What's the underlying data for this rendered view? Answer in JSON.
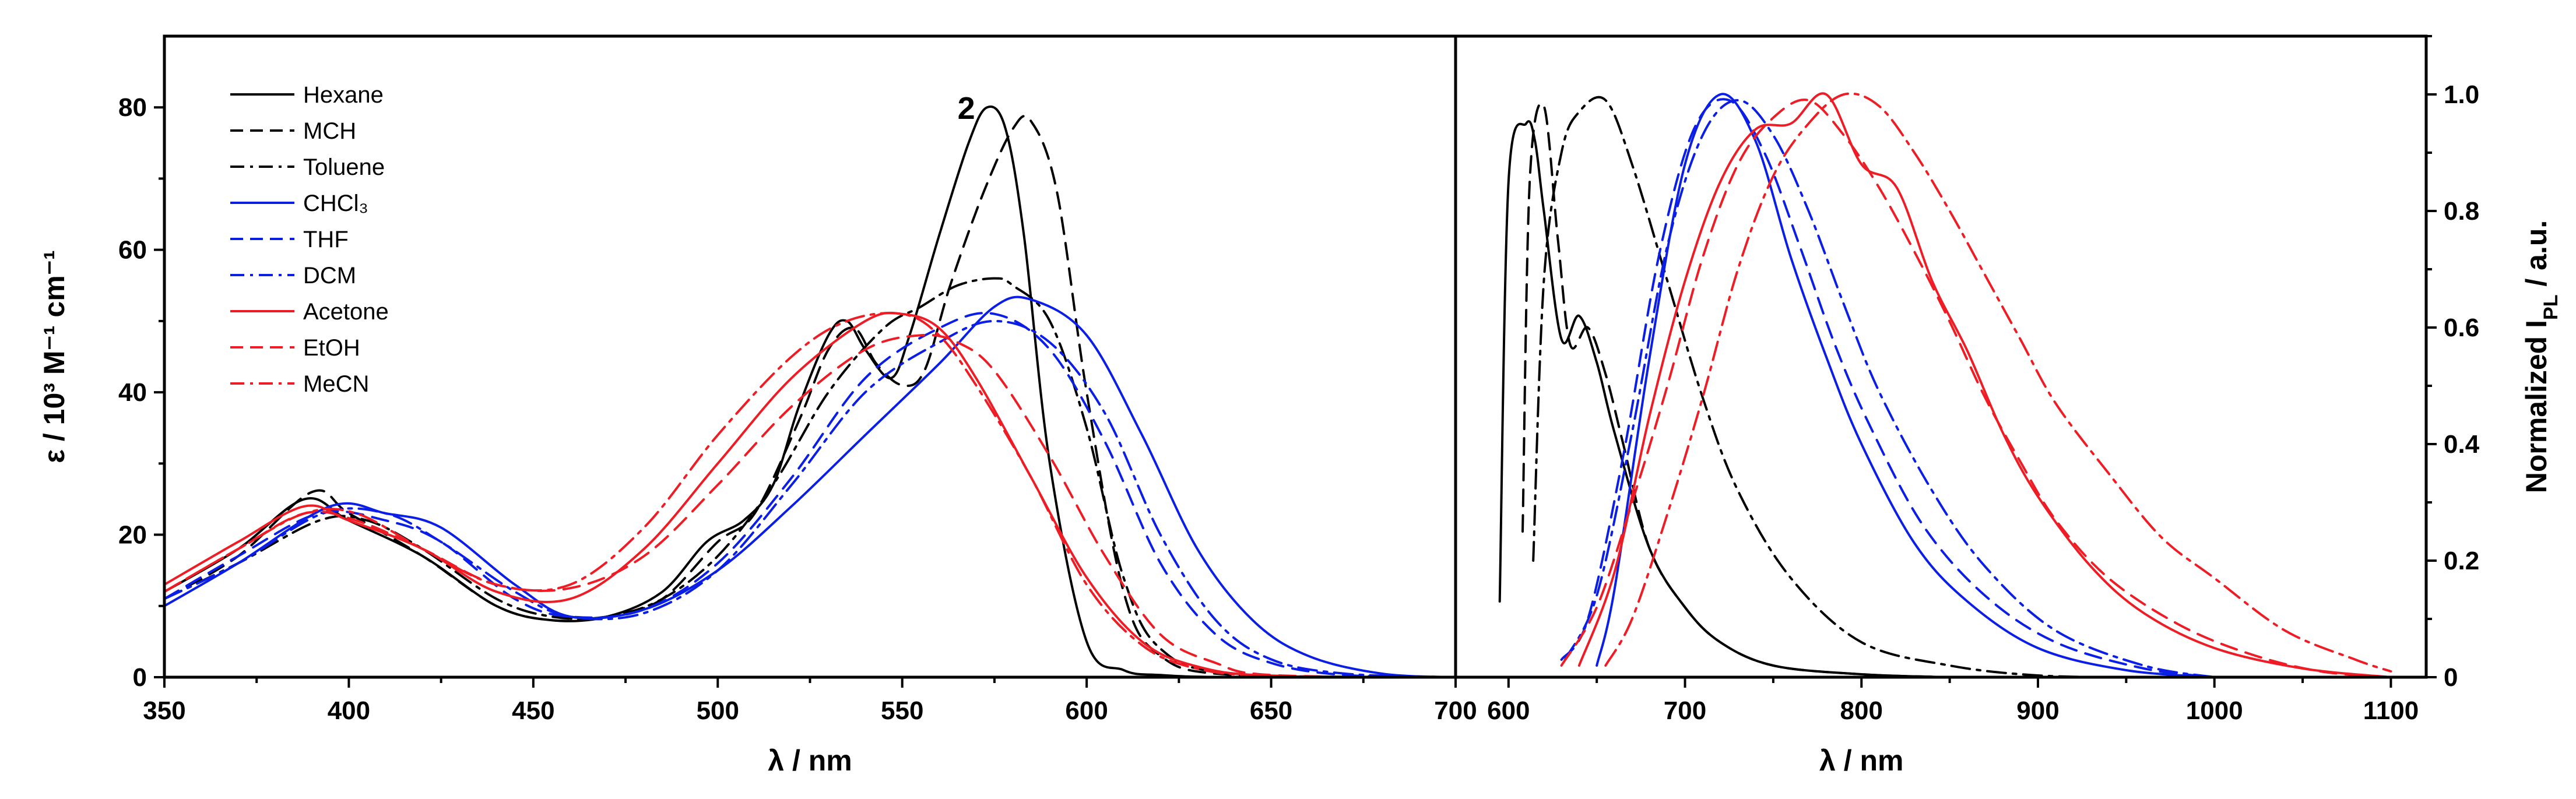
{
  "chart_data": [
    {
      "type": "line",
      "title": "",
      "panel_label": "2",
      "xlabel": "λ / nm",
      "ylabel": "ε / 10³ M⁻¹ cm⁻¹",
      "xlim": [
        350,
        700
      ],
      "ylim": [
        0,
        90
      ],
      "xticks": [
        "350",
        "400",
        "450",
        "500",
        "550",
        "600",
        "650",
        "700"
      ],
      "yticks": [
        "0",
        "20",
        "40",
        "60",
        "80"
      ],
      "legend": [
        {
          "name": "Hexane",
          "color": "#000000",
          "style": "solid"
        },
        {
          "name": "MCH",
          "color": "#000000",
          "style": "dash"
        },
        {
          "name": "Toluene",
          "color": "#000000",
          "style": "dashdot"
        },
        {
          "name": "CHCl₃",
          "color": "#0a1ee6",
          "style": "solid"
        },
        {
          "name": "THF",
          "color": "#0a1ee6",
          "style": "dash"
        },
        {
          "name": "DCM",
          "color": "#0a1ee6",
          "style": "dashdot"
        },
        {
          "name": "Acetone",
          "color": "#ee1c24",
          "style": "solid"
        },
        {
          "name": "EtOH",
          "color": "#ee1c24",
          "style": "dash"
        },
        {
          "name": "MeCN",
          "color": "#ee1c24",
          "style": "dashdot"
        }
      ],
      "series": [
        {
          "name": "Hexane",
          "color": "#000000",
          "style": "solid",
          "x": [
            350,
            370,
            388,
            400,
            420,
            440,
            455,
            470,
            485,
            497,
            507,
            515,
            522,
            530,
            535,
            540,
            547,
            552,
            560,
            568,
            573,
            578,
            583,
            590,
            600,
            610,
            620,
            640,
            700
          ],
          "y": [
            12,
            18,
            25,
            22,
            17,
            10,
            8,
            8.5,
            12,
            19,
            22,
            27,
            38,
            48,
            50,
            46,
            42,
            48,
            62,
            75,
            80,
            77,
            62,
            30,
            5,
            1,
            0.3,
            0,
            0
          ]
        },
        {
          "name": "MCH",
          "color": "#000000",
          "style": "dash",
          "x": [
            350,
            370,
            390,
            400,
            420,
            440,
            455,
            470,
            485,
            500,
            510,
            522,
            530,
            537,
            543,
            550,
            556,
            563,
            572,
            580,
            585,
            592,
            600,
            610,
            620,
            640,
            700
          ],
          "y": [
            11,
            17,
            26,
            23,
            17,
            10,
            8,
            8.5,
            11,
            19,
            23,
            36,
            46,
            49,
            44,
            41,
            43,
            55,
            68,
            77,
            78,
            68,
            40,
            12,
            3,
            0.3,
            0
          ]
        },
        {
          "name": "Toluene",
          "color": "#000000",
          "style": "dashdot",
          "x": [
            350,
            370,
            392,
            405,
            420,
            440,
            455,
            470,
            485,
            500,
            515,
            530,
            545,
            555,
            565,
            575,
            580,
            590,
            600,
            610,
            620,
            640,
            700
          ],
          "y": [
            11,
            16,
            22,
            22,
            18,
            11,
            8.5,
            8.5,
            11,
            17,
            27,
            40,
            49,
            52,
            55,
            56,
            55,
            50,
            35,
            14,
            4,
            0.5,
            0
          ]
        },
        {
          "name": "CHCl₃",
          "color": "#0a1ee6",
          "style": "solid",
          "x": [
            350,
            370,
            395,
            410,
            425,
            445,
            460,
            480,
            500,
            520,
            540,
            560,
            575,
            585,
            600,
            615,
            630,
            645,
            660,
            680,
            700
          ],
          "y": [
            10,
            16,
            24,
            23,
            21,
            13,
            8.5,
            9.5,
            15,
            24,
            34,
            44,
            52,
            53,
            48,
            34,
            18,
            8,
            3,
            0.5,
            0
          ]
        },
        {
          "name": "THF",
          "color": "#0a1ee6",
          "style": "dash",
          "x": [
            350,
            370,
            392,
            410,
            425,
            445,
            460,
            480,
            500,
            520,
            540,
            560,
            575,
            590,
            605,
            620,
            635,
            650,
            670,
            700
          ],
          "y": [
            11,
            17,
            23,
            22,
            19,
            11,
            8.5,
            9.5,
            16,
            28,
            42,
            49,
            51,
            46,
            33,
            16,
            6,
            2,
            0.3,
            0
          ]
        },
        {
          "name": "DCM",
          "color": "#0a1ee6",
          "style": "dashdot",
          "x": [
            350,
            370,
            393,
            410,
            425,
            445,
            460,
            480,
            500,
            520,
            540,
            560,
            575,
            590,
            605,
            620,
            635,
            650,
            670,
            700
          ],
          "y": [
            11,
            16,
            23,
            23,
            19,
            12,
            8.5,
            9,
            15,
            27,
            40,
            47,
            50,
            47,
            37,
            20,
            8,
            2.5,
            0.5,
            0
          ]
        },
        {
          "name": "Acetone",
          "color": "#ee1c24",
          "style": "solid",
          "x": [
            350,
            370,
            388,
            400,
            420,
            440,
            460,
            480,
            500,
            520,
            540,
            550,
            560,
            570,
            585,
            600,
            615,
            630,
            650,
            700
          ],
          "y": [
            13,
            19,
            24,
            22,
            18,
            12,
            11,
            18,
            30,
            42,
            50,
            51,
            49,
            42,
            28,
            14,
            5,
            1.5,
            0.2,
            0
          ]
        },
        {
          "name": "EtOH",
          "color": "#ee1c24",
          "style": "dash",
          "x": [
            350,
            370,
            388,
            402,
            420,
            440,
            460,
            480,
            500,
            520,
            540,
            555,
            565,
            575,
            590,
            605,
            620,
            635,
            650,
            700
          ],
          "y": [
            12,
            18,
            23,
            22,
            18,
            13,
            12.5,
            17,
            27,
            38,
            46,
            48,
            47,
            43,
            31,
            17,
            6,
            2,
            0.3,
            0
          ]
        },
        {
          "name": "MeCN",
          "color": "#ee1c24",
          "style": "dashdot",
          "x": [
            350,
            370,
            388,
            402,
            420,
            440,
            460,
            480,
            500,
            520,
            535,
            550,
            560,
            570,
            585,
            600,
            615,
            630,
            650,
            700
          ],
          "y": [
            12,
            18,
            23,
            23,
            18,
            13,
            13,
            21,
            34,
            45,
            50,
            51,
            48,
            41,
            28,
            13,
            4.5,
            1.2,
            0.2,
            0
          ]
        }
      ]
    },
    {
      "type": "line",
      "title": "",
      "xlabel": "λ / nm",
      "ylabel": "Normalized I",
      "ylabel_sub": "PL",
      "ylabel_suffix": " / a.u.",
      "xlim": [
        570,
        1120
      ],
      "ylim": [
        0,
        1.1
      ],
      "xticks": [
        "600",
        "700",
        "800",
        "900",
        "1000",
        "1100"
      ],
      "yticks": [
        "0",
        "0.2",
        "0.4",
        "0.6",
        "0.8",
        "1.0"
      ],
      "series": [
        {
          "name": "Hexane",
          "color": "#000000",
          "style": "solid",
          "x": [
            595,
            600,
            610,
            615,
            620,
            630,
            640,
            650,
            660,
            680,
            700,
            720,
            750,
            800,
            850
          ],
          "y": [
            0.13,
            0.85,
            0.95,
            0.92,
            0.8,
            0.58,
            0.62,
            0.54,
            0.42,
            0.22,
            0.12,
            0.06,
            0.02,
            0.005,
            0
          ]
        },
        {
          "name": "MCH",
          "color": "#000000",
          "style": "dash",
          "x": [
            608,
            612,
            620,
            628,
            635,
            645,
            655,
            665,
            680,
            700,
            720,
            750,
            800,
            850
          ],
          "y": [
            0.25,
            0.85,
            0.98,
            0.75,
            0.57,
            0.6,
            0.52,
            0.4,
            0.22,
            0.12,
            0.06,
            0.02,
            0.005,
            0
          ]
        },
        {
          "name": "Toluene",
          "color": "#000000",
          "style": "dashdot",
          "x": [
            614,
            620,
            630,
            640,
            655,
            670,
            690,
            710,
            730,
            760,
            800,
            850,
            900,
            950
          ],
          "y": [
            0.2,
            0.68,
            0.9,
            0.97,
            0.99,
            0.88,
            0.68,
            0.48,
            0.32,
            0.17,
            0.06,
            0.02,
            0.003,
            0
          ]
        },
        {
          "name": "CHCl₃",
          "color": "#0a1ee6",
          "style": "solid",
          "x": [
            650,
            660,
            680,
            700,
            720,
            740,
            760,
            780,
            800,
            830,
            860,
            900,
            950,
            1000
          ],
          "y": [
            0.02,
            0.15,
            0.55,
            0.88,
            1.0,
            0.92,
            0.72,
            0.55,
            0.4,
            0.23,
            0.13,
            0.05,
            0.012,
            0
          ]
        },
        {
          "name": "THF",
          "color": "#0a1ee6",
          "style": "dash",
          "x": [
            630,
            645,
            665,
            685,
            705,
            725,
            745,
            765,
            785,
            805,
            835,
            870,
            910,
            960,
            1000
          ],
          "y": [
            0.03,
            0.1,
            0.38,
            0.72,
            0.94,
            0.99,
            0.9,
            0.74,
            0.57,
            0.43,
            0.26,
            0.14,
            0.06,
            0.015,
            0
          ]
        },
        {
          "name": "DCM",
          "color": "#0a1ee6",
          "style": "dashdot",
          "x": [
            632,
            650,
            670,
            690,
            710,
            730,
            750,
            770,
            790,
            810,
            840,
            870,
            910,
            960,
            1000
          ],
          "y": [
            0.03,
            0.14,
            0.42,
            0.74,
            0.93,
            0.99,
            0.93,
            0.8,
            0.64,
            0.49,
            0.32,
            0.19,
            0.08,
            0.02,
            0
          ]
        },
        {
          "name": "Acetone",
          "color": "#ee1c24",
          "style": "solid",
          "x": [
            640,
            660,
            680,
            700,
            720,
            740,
            760,
            780,
            800,
            820,
            840,
            860,
            880,
            900,
            930,
            960,
            1000,
            1050,
            1100
          ],
          "y": [
            0.02,
            0.18,
            0.45,
            0.68,
            0.85,
            0.94,
            0.95,
            1.0,
            0.88,
            0.84,
            0.68,
            0.56,
            0.42,
            0.31,
            0.19,
            0.11,
            0.05,
            0.015,
            0
          ]
        },
        {
          "name": "EtOH",
          "color": "#ee1c24",
          "style": "dash",
          "x": [
            630,
            650,
            670,
            690,
            710,
            730,
            750,
            770,
            790,
            810,
            830,
            850,
            870,
            890,
            910,
            940,
            980,
            1020,
            1060,
            1100
          ],
          "y": [
            0.02,
            0.12,
            0.3,
            0.5,
            0.72,
            0.88,
            0.96,
            0.99,
            0.93,
            0.84,
            0.73,
            0.61,
            0.48,
            0.37,
            0.27,
            0.17,
            0.09,
            0.04,
            0.01,
            0
          ]
        },
        {
          "name": "MeCN",
          "color": "#ee1c24",
          "style": "dashdot",
          "x": [
            655,
            670,
            690,
            710,
            730,
            750,
            770,
            790,
            810,
            830,
            850,
            870,
            890,
            910,
            940,
            970,
            1000,
            1040,
            1080,
            1100
          ],
          "y": [
            0.02,
            0.1,
            0.28,
            0.48,
            0.7,
            0.86,
            0.95,
            1.0,
            0.98,
            0.9,
            0.8,
            0.69,
            0.58,
            0.47,
            0.35,
            0.24,
            0.17,
            0.08,
            0.03,
            0.01
          ]
        }
      ]
    }
  ]
}
